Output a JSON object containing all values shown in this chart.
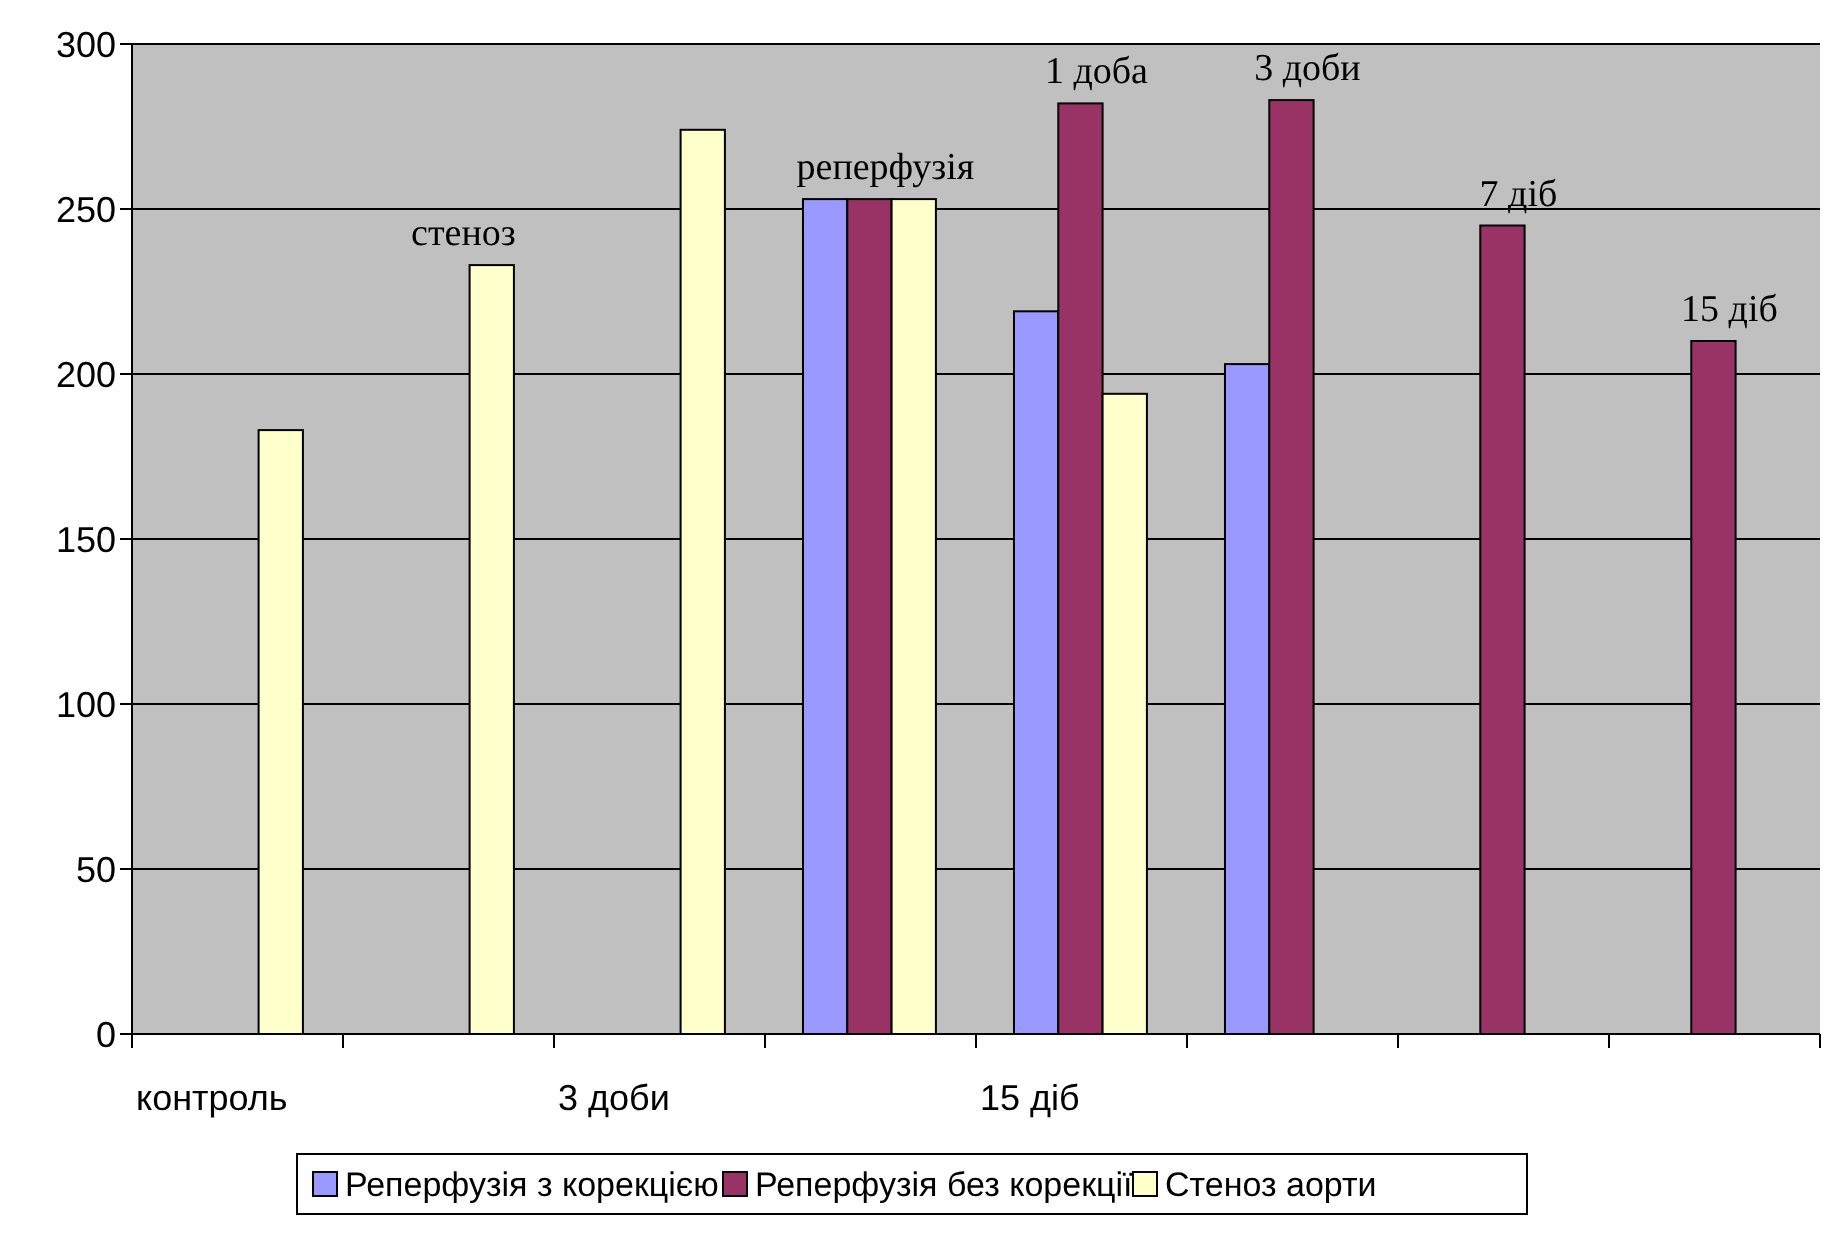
{
  "chart_data": {
    "type": "bar",
    "categories": [
      "контроль",
      null,
      "3 доби",
      null,
      "15 діб",
      null,
      null,
      null
    ],
    "series": [
      {
        "name": "Реперфузія з корекцією",
        "color": "#9999ff",
        "values": [
          null,
          null,
          null,
          253,
          219,
          203,
          null,
          null
        ]
      },
      {
        "name": "Реперфузія без корекції",
        "color": "#993366",
        "values": [
          null,
          null,
          null,
          253,
          282,
          283,
          245,
          210
        ]
      },
      {
        "name": "Стеноз аорти",
        "color": "#ffffcc",
        "values": [
          183,
          233,
          274,
          253,
          194,
          null,
          null,
          null
        ]
      }
    ],
    "annotations": [
      "стеноз",
      "реперфузія",
      "1 доба",
      "3 доби",
      "7 діб",
      "15 діб"
    ],
    "ylim": [
      0,
      300
    ],
    "yticks": [
      0,
      50,
      100,
      150,
      200,
      250,
      300
    ],
    "grid": "y",
    "legend": "bottom"
  }
}
